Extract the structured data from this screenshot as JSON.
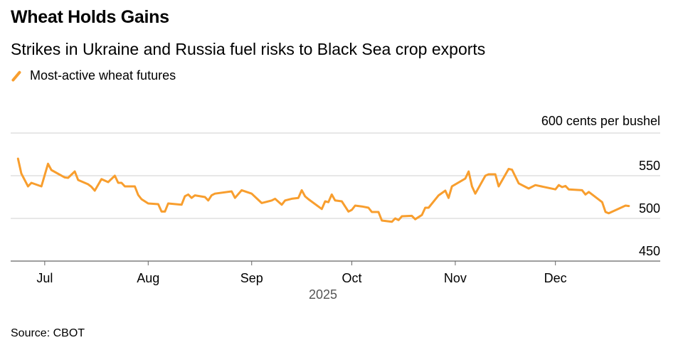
{
  "chart_data": {
    "type": "line",
    "title": "Wheat Holds Gains",
    "subtitle": "Strikes in Ukraine and Russia fuel risks to Black Sea crop exports",
    "legend": [
      "Most-active wheat futures"
    ],
    "legend_placement": "top-left",
    "ylabel": "cents per bushel",
    "unit_label": "600 cents per bushel",
    "ylim": [
      450,
      600
    ],
    "yticks": [
      600,
      550,
      500,
      450
    ],
    "ytick_labels": [
      "550",
      "500",
      "450"
    ],
    "x_unit": "days since 2025-07-01",
    "xlim": [
      -10.2,
      184.4
    ],
    "xticks": [
      0,
      31,
      62,
      92,
      123,
      153
    ],
    "xtick_labels": [
      "Jul",
      "Aug",
      "Sep",
      "Oct",
      "Nov",
      "Dec"
    ],
    "xlabel": "2025",
    "grid": true,
    "color": "#f89e2e",
    "series": [
      {
        "name": "Most-active wheat futures",
        "x": [
          -8,
          -7,
          -5,
          -4,
          -1,
          1,
          2,
          6,
          7,
          9,
          10,
          13,
          14,
          15,
          17,
          19,
          21,
          22,
          23,
          24,
          27,
          28,
          29,
          31,
          34,
          35,
          36,
          37,
          41,
          42,
          43,
          44,
          45,
          48,
          49,
          50,
          51,
          56,
          57,
          59,
          62,
          64,
          65,
          68,
          69,
          71,
          72,
          74,
          76,
          77,
          78,
          79,
          83,
          84,
          85,
          86,
          87,
          89,
          91,
          92,
          93,
          95,
          97,
          98,
          100,
          101,
          104,
          105,
          106,
          107,
          110,
          111,
          113,
          114,
          115,
          118,
          120,
          121,
          122,
          126,
          127,
          128,
          129,
          132,
          133,
          135,
          136,
          139,
          140,
          142,
          145,
          147,
          153,
          154,
          155,
          156,
          157,
          161,
          162,
          163,
          167,
          168,
          169,
          174,
          175
        ],
        "values": [
          570,
          552.5,
          537.5,
          541.7,
          537.5,
          564,
          556.7,
          548,
          547.5,
          555,
          545,
          540,
          537,
          532.5,
          546,
          542.5,
          550,
          541.7,
          541.7,
          537.5,
          537.5,
          527.5,
          522.5,
          517.5,
          516.7,
          508,
          508,
          517.5,
          516,
          526,
          528,
          524,
          527,
          525,
          521,
          527,
          529,
          531.7,
          524,
          533,
          529,
          521.7,
          518,
          521,
          523,
          516,
          521,
          523,
          524,
          533,
          525.8,
          522.5,
          511,
          520,
          519,
          528,
          521,
          520,
          508,
          510,
          515,
          514,
          512.5,
          507.5,
          507.5,
          497.5,
          496,
          500,
          498,
          502.5,
          503,
          499,
          504,
          512.5,
          512.5,
          527,
          532.5,
          524,
          537.5,
          546.7,
          555,
          537.5,
          529,
          550,
          551.7,
          551.7,
          537.5,
          558,
          557,
          541,
          535,
          539,
          534,
          539,
          536.7,
          538,
          534,
          533,
          528,
          531,
          519,
          507.5,
          506,
          515,
          514.5
        ]
      }
    ]
  },
  "source": "Source: CBOT"
}
